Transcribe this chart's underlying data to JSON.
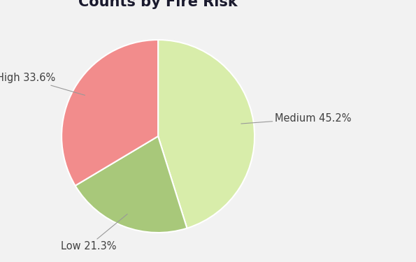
{
  "title": "Counts by Fire Risk",
  "title_fontsize": 15,
  "title_fontweight": "bold",
  "slices": [
    {
      "label": "Medium",
      "pct": 45.2,
      "color": "#d8edaa"
    },
    {
      "label": "Low",
      "pct": 21.3,
      "color": "#a8c87a"
    },
    {
      "label": "High",
      "pct": 33.6,
      "color": "#f28c8c"
    }
  ],
  "background_color": "#f2f2f2",
  "chart_bg": "#ffffff",
  "startangle": 90,
  "label_fontsize": 10.5,
  "label_color": "#404040",
  "edge_color": "#ffffff",
  "edge_linewidth": 1.5
}
